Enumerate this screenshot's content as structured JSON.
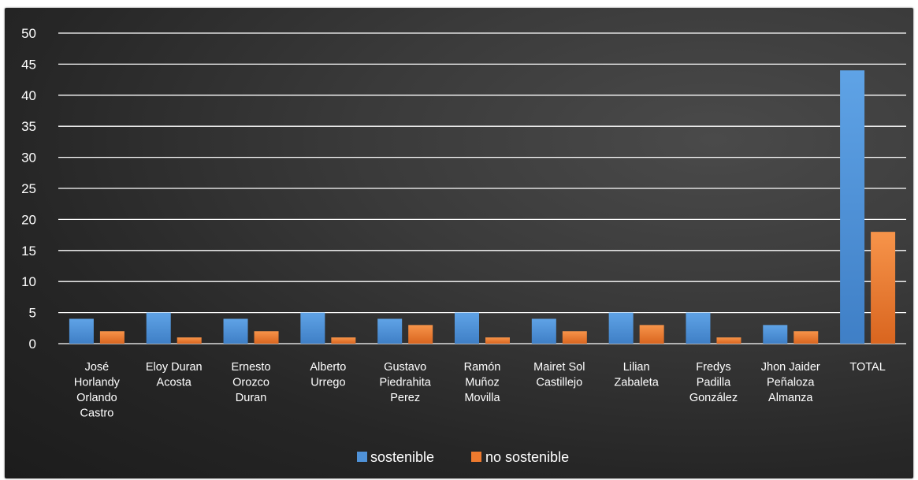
{
  "chart_data": {
    "type": "bar",
    "categories": [
      [
        "José",
        "Horlandy",
        "Orlando",
        "Castro"
      ],
      [
        "Eloy Duran",
        "Acosta"
      ],
      [
        "Ernesto",
        "Orozco",
        "Duran"
      ],
      [
        "Alberto",
        "Urrego"
      ],
      [
        "Gustavo",
        "Piedrahita",
        "Perez"
      ],
      [
        "Ramón",
        "Muñoz",
        "Movilla"
      ],
      [
        "Mairet Sol",
        "Castillejo"
      ],
      [
        "Lilian",
        "Zabaleta"
      ],
      [
        "Fredys",
        "Padilla",
        "González"
      ],
      [
        "Jhon Jaider",
        "Peñaloza",
        "Almanza"
      ],
      [
        "TOTAL"
      ]
    ],
    "series": [
      {
        "name": "sostenible",
        "color": "#4f92d8",
        "values": [
          4,
          5,
          4,
          5,
          4,
          5,
          4,
          5,
          5,
          3,
          44
        ]
      },
      {
        "name": "no sostenible",
        "color": "#ee7a2e",
        "values": [
          2,
          1,
          2,
          1,
          3,
          1,
          2,
          3,
          1,
          2,
          18
        ]
      }
    ],
    "ylim": [
      0,
      50
    ],
    "yticks": [
      0,
      5,
      10,
      15,
      20,
      25,
      30,
      35,
      40,
      45,
      50
    ],
    "grid": true,
    "legend_position": "bottom",
    "title": "",
    "xlabel": "",
    "ylabel": ""
  }
}
